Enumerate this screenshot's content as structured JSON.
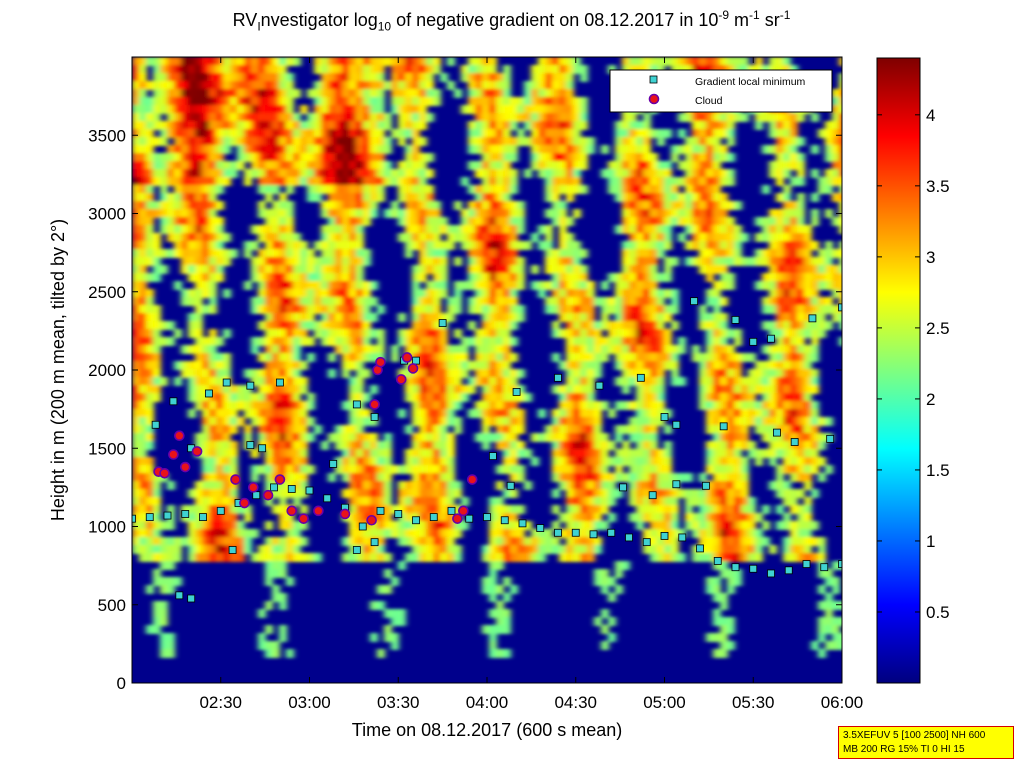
{
  "title": {
    "t1": "RV",
    "t2": "I",
    "t3": "nvestigator log",
    "t4": "10",
    "t5": " of negative gradient on 08.12.2017 in 10",
    "t6": "-9",
    "t7": " m",
    "t8": "-1",
    "t9": " sr",
    "t10": "-1"
  },
  "info_box": {
    "line1": "3.5XEFUV 5 [100 2500] NH 600",
    "line2": "MB 200 RG 15% TI 0 HI 15"
  },
  "colors": {
    "background": "#00008c",
    "marker_gradient": "#3fd2d2",
    "marker_cloud": "#e8131a",
    "colormap": [
      "#00007f",
      "#0000ff",
      "#007fff",
      "#00ffff",
      "#7fff7f",
      "#ffff00",
      "#ff7f00",
      "#ff0000",
      "#7f0000"
    ]
  },
  "chart_data": {
    "type": "heatmap",
    "xlabel": "Time on 08.12.2017 (600 s mean)",
    "ylabel": "Height in m (200 m mean, tilted by 2°)",
    "xlim": [
      "02:00",
      "06:00"
    ],
    "ylim": [
      0,
      4000
    ],
    "x_ticks": [
      "02:30",
      "03:00",
      "03:30",
      "04:00",
      "04:30",
      "05:00",
      "05:30",
      "06:00"
    ],
    "y_ticks": [
      0,
      500,
      1000,
      1500,
      2000,
      2500,
      3000,
      3500
    ],
    "colorbar": {
      "min": 0,
      "max": 4.4,
      "ticks": [
        0.5,
        1,
        1.5,
        2,
        2.5,
        3,
        3.5,
        4
      ]
    },
    "legend": {
      "placement": "top-right",
      "entries": [
        {
          "label": "Gradient local minimum",
          "marker": "square"
        },
        {
          "label": "Cloud",
          "marker": "circle"
        }
      ]
    },
    "series": [
      {
        "name": "Gradient local minimum",
        "points": [
          [
            "02:00",
            1050
          ],
          [
            "02:06",
            1060
          ],
          [
            "02:12",
            1070
          ],
          [
            "02:18",
            1080
          ],
          [
            "02:24",
            1060
          ],
          [
            "02:30",
            1100
          ],
          [
            "02:36",
            1150
          ],
          [
            "02:42",
            1200
          ],
          [
            "02:48",
            1250
          ],
          [
            "02:54",
            1240
          ],
          [
            "03:00",
            1230
          ],
          [
            "03:06",
            1180
          ],
          [
            "03:12",
            1120
          ],
          [
            "03:18",
            1000
          ],
          [
            "03:24",
            1100
          ],
          [
            "03:30",
            1080
          ],
          [
            "03:36",
            1040
          ],
          [
            "03:42",
            1060
          ],
          [
            "03:48",
            1100
          ],
          [
            "03:54",
            1050
          ],
          [
            "04:00",
            1060
          ],
          [
            "04:06",
            1040
          ],
          [
            "04:12",
            1020
          ],
          [
            "04:18",
            990
          ],
          [
            "04:24",
            960
          ],
          [
            "04:30",
            960
          ],
          [
            "04:36",
            950
          ],
          [
            "04:42",
            960
          ],
          [
            "04:48",
            930
          ],
          [
            "04:54",
            900
          ],
          [
            "05:00",
            940
          ],
          [
            "05:06",
            930
          ],
          [
            "05:12",
            860
          ],
          [
            "05:18",
            780
          ],
          [
            "05:24",
            740
          ],
          [
            "05:30",
            730
          ],
          [
            "05:36",
            700
          ],
          [
            "05:42",
            720
          ],
          [
            "05:48",
            760
          ],
          [
            "05:54",
            740
          ],
          [
            "06:00",
            760
          ],
          [
            "02:08",
            1650
          ],
          [
            "02:14",
            1800
          ],
          [
            "02:20",
            1500
          ],
          [
            "02:26",
            1850
          ],
          [
            "02:32",
            1920
          ],
          [
            "02:40",
            1900
          ],
          [
            "02:50",
            1920
          ],
          [
            "03:08",
            1400
          ],
          [
            "03:16",
            1780
          ],
          [
            "03:22",
            1700
          ],
          [
            "03:32",
            2060
          ],
          [
            "03:36",
            2060
          ],
          [
            "03:45",
            2300
          ],
          [
            "04:02",
            1450
          ],
          [
            "04:08",
            1260
          ],
          [
            "04:10",
            1860
          ],
          [
            "04:24",
            1950
          ],
          [
            "04:38",
            1900
          ],
          [
            "04:52",
            1950
          ],
          [
            "05:00",
            1700
          ],
          [
            "05:04",
            1650
          ],
          [
            "05:10",
            2440
          ],
          [
            "05:14",
            1260
          ],
          [
            "05:20",
            1640
          ],
          [
            "05:24",
            2320
          ],
          [
            "05:38",
            1600
          ],
          [
            "05:44",
            1540
          ],
          [
            "05:50",
            2330
          ],
          [
            "05:56",
            1560
          ],
          [
            "06:00",
            2400
          ],
          [
            "02:34",
            850
          ],
          [
            "02:40",
            1520
          ],
          [
            "02:44",
            1500
          ],
          [
            "03:16",
            850
          ],
          [
            "03:22",
            900
          ],
          [
            "02:16",
            560
          ],
          [
            "02:20",
            540
          ],
          [
            "04:56",
            1200
          ],
          [
            "05:04",
            1270
          ],
          [
            "05:30",
            2180
          ],
          [
            "05:36",
            2200
          ],
          [
            "04:46",
            1250
          ]
        ]
      },
      {
        "name": "Cloud",
        "points": [
          [
            "02:09",
            1350
          ],
          [
            "02:11",
            1340
          ],
          [
            "02:14",
            1460
          ],
          [
            "02:16",
            1580
          ],
          [
            "02:18",
            1380
          ],
          [
            "02:22",
            1480
          ],
          [
            "02:35",
            1300
          ],
          [
            "02:38",
            1150
          ],
          [
            "02:41",
            1250
          ],
          [
            "02:46",
            1200
          ],
          [
            "02:50",
            1300
          ],
          [
            "02:54",
            1100
          ],
          [
            "02:58",
            1050
          ],
          [
            "03:03",
            1100
          ],
          [
            "03:12",
            1080
          ],
          [
            "03:21",
            1040
          ],
          [
            "03:22",
            1780
          ],
          [
            "03:23",
            2000
          ],
          [
            "03:24",
            2050
          ],
          [
            "03:31",
            1940
          ],
          [
            "03:33",
            2080
          ],
          [
            "03:35",
            2010
          ],
          [
            "03:50",
            1050
          ],
          [
            "03:52",
            1100
          ],
          [
            "03:55",
            1300
          ]
        ]
      }
    ]
  }
}
